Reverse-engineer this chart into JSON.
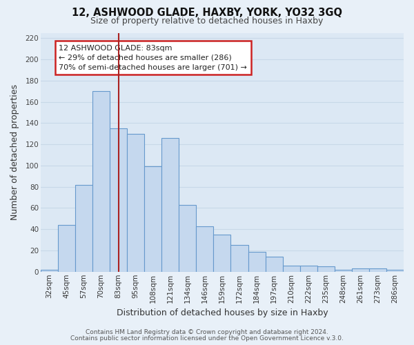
{
  "title": "12, ASHWOOD GLADE, HAXBY, YORK, YO32 3GQ",
  "subtitle": "Size of property relative to detached houses in Haxby",
  "xlabel": "Distribution of detached houses by size in Haxby",
  "ylabel": "Number of detached properties",
  "bar_labels": [
    "32sqm",
    "45sqm",
    "57sqm",
    "70sqm",
    "83sqm",
    "95sqm",
    "108sqm",
    "121sqm",
    "134sqm",
    "146sqm",
    "159sqm",
    "172sqm",
    "184sqm",
    "197sqm",
    "210sqm",
    "222sqm",
    "235sqm",
    "248sqm",
    "261sqm",
    "273sqm",
    "286sqm"
  ],
  "bar_values": [
    2,
    44,
    82,
    170,
    135,
    130,
    99,
    126,
    63,
    43,
    35,
    25,
    19,
    14,
    6,
    6,
    5,
    2,
    3,
    3,
    2
  ],
  "highlight_index": 4,
  "vline_color": "#aa2222",
  "bar_color": "#c5d8ee",
  "bar_edge_color": "#6699cc",
  "ylim": [
    0,
    225
  ],
  "yticks": [
    0,
    20,
    40,
    60,
    80,
    100,
    120,
    140,
    160,
    180,
    200,
    220
  ],
  "annotation_title": "12 ASHWOOD GLADE: 83sqm",
  "annotation_line1": "← 29% of detached houses are smaller (286)",
  "annotation_line2": "70% of semi-detached houses are larger (701) →",
  "annotation_box_facecolor": "#ffffff",
  "annotation_box_edgecolor": "#cc2222",
  "footer1": "Contains HM Land Registry data © Crown copyright and database right 2024.",
  "footer2": "Contains public sector information licensed under the Open Government Licence v.3.0.",
  "grid_color": "#c8d8e8",
  "bg_color": "#e8f0f8",
  "plot_bg_color": "#dce8f4",
  "title_fontsize": 10.5,
  "subtitle_fontsize": 9,
  "tick_fontsize": 7.5,
  "axis_label_fontsize": 9
}
